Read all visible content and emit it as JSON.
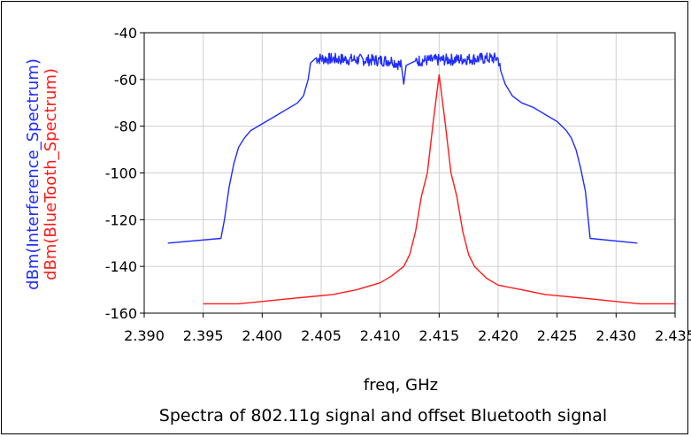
{
  "chart_data": {
    "type": "line",
    "title": "Spectra of 802.11g signal and offset Bluetooth signal",
    "xlabel": "freq, GHz",
    "ylabels": [
      "dBm(Interference_Spectrum)",
      "dBm(BlueTooth_Spectrum)"
    ],
    "xlim": [
      2.39,
      2.435
    ],
    "ylim": [
      -160,
      -40
    ],
    "x_ticks": [
      "2.390",
      "2.395",
      "2.400",
      "2.405",
      "2.410",
      "2.415",
      "2.420",
      "2.425",
      "2.430",
      "2.435"
    ],
    "y_ticks": [
      "-40",
      "-60",
      "-80",
      "-100",
      "-120",
      "-140",
      "-160"
    ],
    "grid": true,
    "series": [
      {
        "name": "dBm(Interference_Spectrum)",
        "color": "#1f2cff",
        "x": [
          2.392,
          2.3965,
          2.3968,
          2.3972,
          2.3976,
          2.398,
          2.3985,
          2.399,
          2.4,
          2.401,
          2.402,
          2.403,
          2.4035,
          2.4039,
          2.4041,
          2.4045,
          2.411,
          2.4118,
          2.412,
          2.4122,
          2.413,
          2.419,
          2.42,
          2.4202,
          2.4206,
          2.4212,
          2.422,
          2.423,
          2.424,
          2.425,
          2.4258,
          2.4262,
          2.4266,
          2.427,
          2.4274,
          2.4278,
          2.4318
        ],
        "y": [
          -130,
          -128,
          -120,
          -106,
          -96,
          -89,
          -85,
          -82,
          -79,
          -76,
          -73,
          -70,
          -67,
          -60,
          -53,
          -51,
          -52,
          -54,
          -62,
          -54,
          -52,
          -51,
          -51,
          -56,
          -62,
          -67,
          -70,
          -72,
          -75,
          -78,
          -82,
          -85,
          -90,
          -98,
          -108,
          -128,
          -130
        ],
        "noisy_x_ranges": [
          [
            2.4045,
            2.4118
          ],
          [
            2.4125,
            2.4202
          ]
        ]
      },
      {
        "name": "dBm(BlueTooth_Spectrum)",
        "color": "#ff1a1a",
        "x": [
          2.395,
          2.398,
          2.4,
          2.402,
          2.404,
          2.406,
          2.408,
          2.41,
          2.411,
          2.412,
          2.4125,
          2.413,
          2.4135,
          2.414,
          2.4145,
          2.415,
          2.4155,
          2.416,
          2.4165,
          2.417,
          2.4175,
          2.418,
          2.419,
          2.42,
          2.422,
          2.424,
          2.426,
          2.428,
          2.43,
          2.432,
          2.435
        ],
        "y": [
          -156,
          -156,
          -155,
          -154,
          -153,
          -152,
          -150,
          -147,
          -144,
          -140,
          -135,
          -125,
          -110,
          -100,
          -78,
          -58,
          -78,
          -100,
          -110,
          -125,
          -135,
          -140,
          -145,
          -148,
          -150,
          -152,
          -153,
          -154,
          -155,
          -156,
          -156
        ]
      }
    ]
  }
}
